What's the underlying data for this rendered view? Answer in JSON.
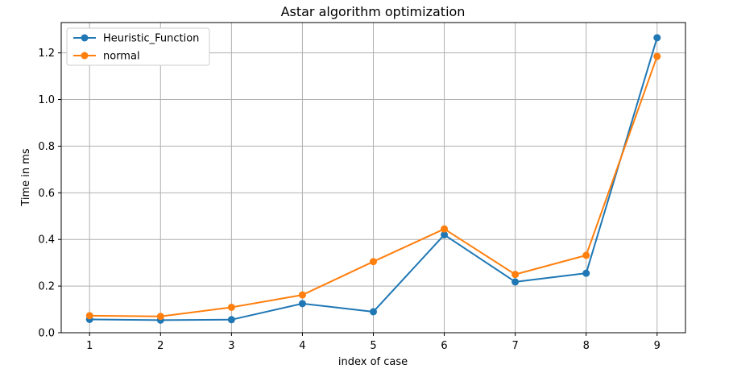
{
  "chart_data": {
    "type": "line",
    "title": "Astar algorithm optimization",
    "xlabel": "index of case",
    "ylabel": "Time in ms",
    "x": [
      1,
      2,
      3,
      4,
      5,
      6,
      7,
      8,
      9
    ],
    "xticks": [
      "1",
      "2",
      "3",
      "4",
      "5",
      "6",
      "7",
      "8",
      "9"
    ],
    "xlim": [
      0.6,
      9.4
    ],
    "ylim": [
      0.0,
      1.33
    ],
    "yticks": [
      "0.0",
      "0.2",
      "0.4",
      "0.6",
      "0.8",
      "1.0",
      "1.2"
    ],
    "grid": true,
    "legend_position": "upper-left",
    "series": [
      {
        "name": "Heuristic_Function",
        "color": "#1f77b4",
        "marker": "circle",
        "values": [
          0.057,
          0.054,
          0.056,
          0.125,
          0.09,
          0.42,
          0.218,
          0.255,
          1.265
        ]
      },
      {
        "name": "normal",
        "color": "#ff7f0e",
        "marker": "circle",
        "values": [
          0.073,
          0.07,
          0.109,
          0.162,
          0.305,
          0.445,
          0.25,
          0.332,
          1.185
        ]
      }
    ]
  }
}
